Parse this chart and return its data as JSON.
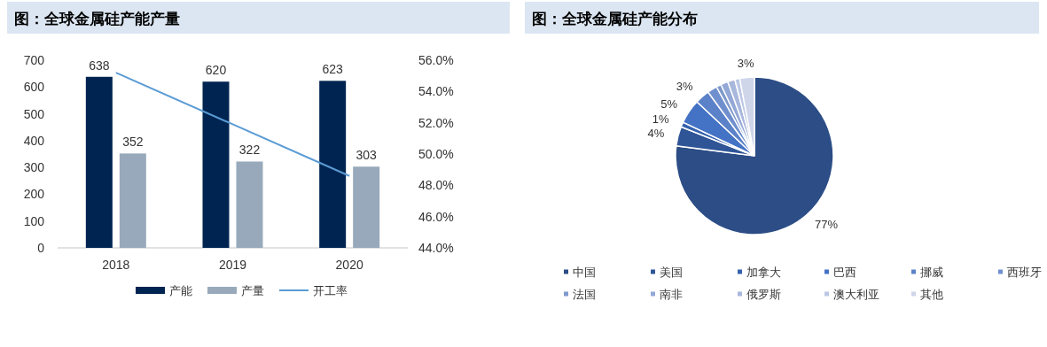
{
  "chart_data": [
    {
      "type": "bar",
      "title": "图：全球金属硅产能产量",
      "categories": [
        "2018",
        "2019",
        "2020"
      ],
      "series": [
        {
          "name": "产能",
          "color": "#002451",
          "values": [
            638,
            620,
            623
          ],
          "value_labels": [
            "638",
            "620",
            "623"
          ]
        },
        {
          "name": "产量",
          "color": "#98a9bb",
          "values": [
            352,
            322,
            303
          ],
          "value_labels": [
            "352",
            "322",
            "303"
          ]
        },
        {
          "name": "开工率",
          "type": "line",
          "axis": "y2",
          "color": "#5b9bd5",
          "values": [
            55.2,
            51.9,
            48.6
          ]
        }
      ],
      "ylim": [
        0,
        700
      ],
      "yticks": [
        0,
        100,
        200,
        300,
        400,
        500,
        600,
        700
      ],
      "y2lim": [
        44,
        56
      ],
      "y2ticks": [
        {
          "value": 44,
          "label": "44.0%"
        },
        {
          "value": 46,
          "label": "46.0%"
        },
        {
          "value": 48,
          "label": "48.0%"
        },
        {
          "value": 50,
          "label": "50.0%"
        },
        {
          "value": 52,
          "label": "52.0%"
        },
        {
          "value": 54,
          "label": "54.0%"
        },
        {
          "value": 56,
          "label": "56.0%"
        }
      ],
      "legend": "bottom"
    },
    {
      "type": "pie",
      "title": "图：全球金属硅产能分布",
      "categories": [
        "中国",
        "美国",
        "加拿大",
        "巴西",
        "挪威",
        "西班牙",
        "法国",
        "南非",
        "俄罗斯",
        "澳大利亚",
        "其他"
      ],
      "values": [
        77,
        4,
        1,
        5,
        3,
        2,
        1,
        1.5,
        1.5,
        1,
        3
      ],
      "value_labels": [
        "77%",
        "4%",
        "1%",
        "5%",
        "3%",
        null,
        null,
        null,
        null,
        null,
        "3%"
      ],
      "colors": [
        "#2c4d86",
        "#2f5597",
        "#3461ad",
        "#4472c4",
        "#5b82c8",
        "#6f8fce",
        "#7f9acb",
        "#93a8d6",
        "#a8b7dc",
        "#bcc7e4",
        "#cfd6ea"
      ],
      "legend": "bottom"
    }
  ]
}
